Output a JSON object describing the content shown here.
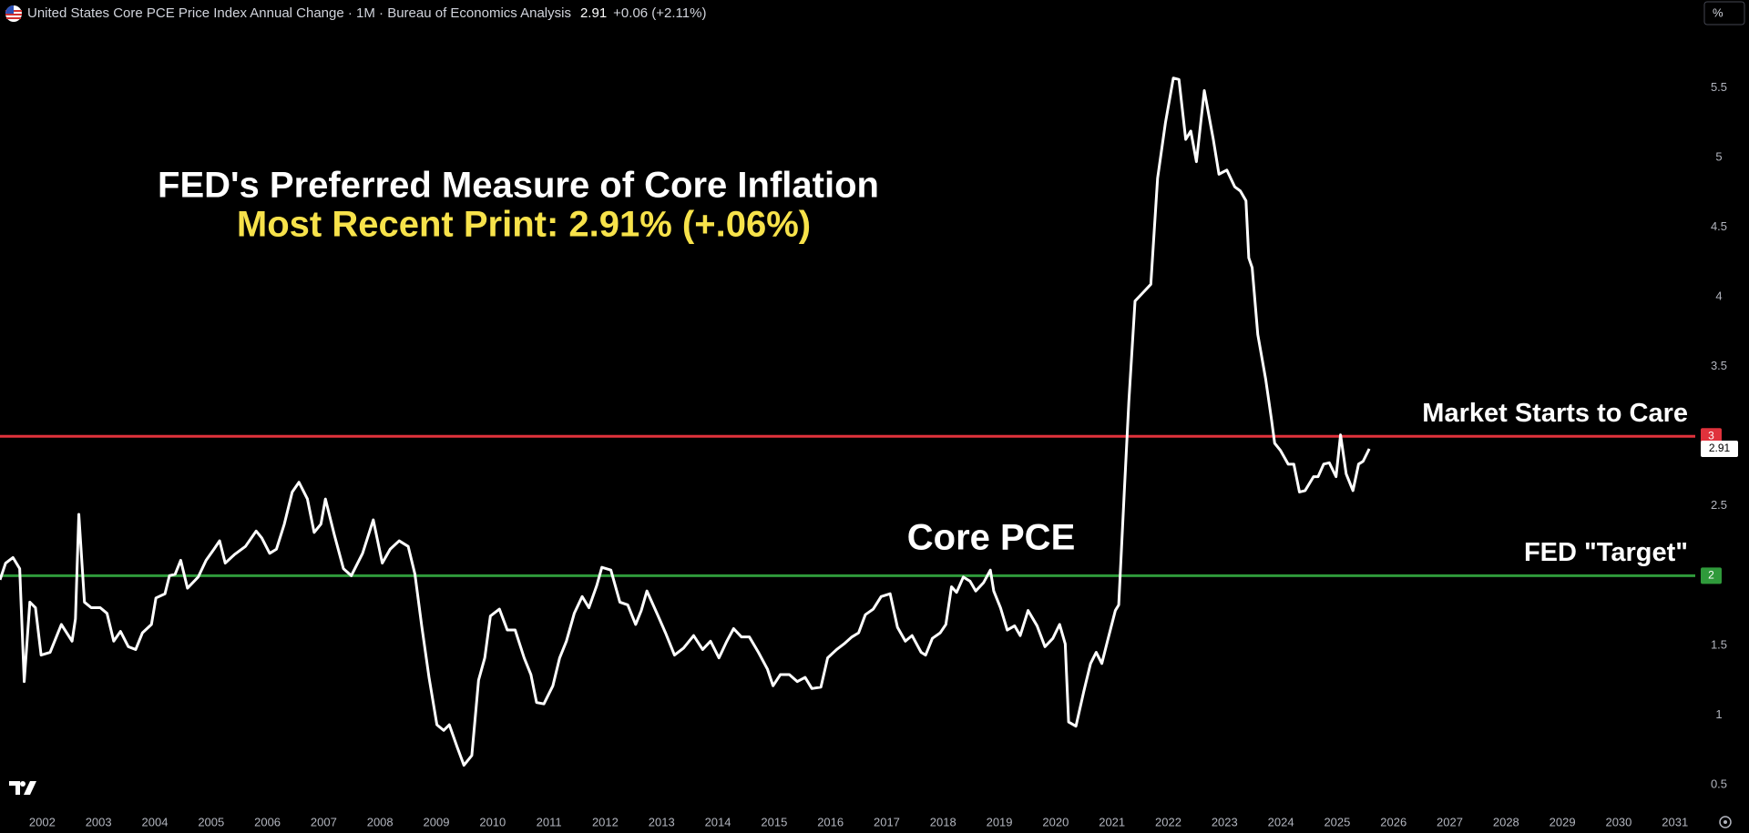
{
  "header": {
    "symbol": "United States Core PCE Price Index Annual Change · 1M · Bureau of Economics Analysis",
    "price": 2.91,
    "change": "+0.06 (+2.11%)",
    "unit_button": "%"
  },
  "chart_data": {
    "type": "line",
    "title": "FED's Preferred Measure of Core Inflation",
    "subtitle": "Most Recent Print: 2.91% (+.06%)",
    "xlim": [
      2001.25,
      2031.36
    ],
    "xticks": [
      2002,
      2003,
      2004,
      2005,
      2006,
      2007,
      2008,
      2009,
      2010,
      2011,
      2012,
      2013,
      2014,
      2015,
      2016,
      2017,
      2018,
      2019,
      2020,
      2021,
      2022,
      2023,
      2024,
      2025,
      2026,
      2027,
      2028,
      2029,
      2030,
      2031
    ],
    "ylim": [
      0.33,
      6.13
    ],
    "yticks": [
      0.5,
      1,
      1.5,
      2.5,
      3.5,
      4,
      4.5,
      5,
      5.5
    ],
    "grid": false,
    "hlines": [
      {
        "value": 3,
        "color": "#e0323c",
        "label": "Market Starts to Care"
      },
      {
        "value": 2,
        "color": "#2f9a3b",
        "label": "FED \"Target\""
      }
    ],
    "series": [
      {
        "name": "Core PCE",
        "color": "#ffffff",
        "x": [
          2001.25,
          2001.35,
          2001.48,
          2001.6,
          2001.68,
          2001.78,
          2001.88,
          2001.98,
          2002.14,
          2002.34,
          2002.53,
          2002.59,
          2002.65,
          2002.75,
          2002.87,
          2003.03,
          2003.15,
          2003.27,
          2003.39,
          2003.53,
          2003.66,
          2003.78,
          2003.94,
          2004.02,
          2004.18,
          2004.26,
          2004.36,
          2004.46,
          2004.58,
          2004.77,
          2004.91,
          2005.05,
          2005.15,
          2005.25,
          2005.41,
          2005.61,
          2005.8,
          2005.9,
          2006.04,
          2006.16,
          2006.3,
          2006.44,
          2006.56,
          2006.71,
          2006.83,
          2006.95,
          2007.03,
          2007.19,
          2007.35,
          2007.49,
          2007.69,
          2007.88,
          2008.04,
          2008.18,
          2008.34,
          2008.5,
          2008.62,
          2008.74,
          2008.87,
          2009.01,
          2009.13,
          2009.23,
          2009.37,
          2009.49,
          2009.63,
          2009.75,
          2009.86,
          2009.96,
          2010.12,
          2010.26,
          2010.4,
          2010.56,
          2010.68,
          2010.78,
          2010.91,
          2011.07,
          2011.19,
          2011.31,
          2011.45,
          2011.59,
          2011.71,
          2011.85,
          2011.94,
          2012.1,
          2012.26,
          2012.4,
          2012.54,
          2012.64,
          2012.74,
          2012.94,
          2013.07,
          2013.23,
          2013.39,
          2013.57,
          2013.73,
          2013.87,
          2014.02,
          2014.16,
          2014.28,
          2014.42,
          2014.56,
          2014.72,
          2014.88,
          2014.98,
          2015.11,
          2015.27,
          2015.41,
          2015.55,
          2015.67,
          2015.83,
          2015.95,
          2016.11,
          2016.24,
          2016.38,
          2016.5,
          2016.62,
          2016.76,
          2016.9,
          2017.06,
          2017.19,
          2017.33,
          2017.45,
          2017.61,
          2017.69,
          2017.81,
          2017.95,
          2018.05,
          2018.15,
          2018.24,
          2018.36,
          2018.48,
          2018.58,
          2018.72,
          2018.84,
          2018.9,
          2019.02,
          2019.14,
          2019.27,
          2019.37,
          2019.51,
          2019.67,
          2019.81,
          2019.95,
          2020.07,
          2020.17,
          2020.23,
          2020.36,
          2020.5,
          2020.62,
          2020.72,
          2020.82,
          2020.92,
          2021.06,
          2021.12,
          2021.22,
          2021.3,
          2021.41,
          2021.55,
          2021.69,
          2021.81,
          2021.95,
          2022.09,
          2022.19,
          2022.31,
          2022.4,
          2022.5,
          2022.64,
          2022.8,
          2022.9,
          2023.04,
          2023.18,
          2023.28,
          2023.38,
          2023.43,
          2023.49,
          2023.59,
          2023.73,
          2023.83,
          2023.89,
          2023.99,
          2024.13,
          2024.23,
          2024.33,
          2024.43,
          2024.58,
          2024.66,
          2024.76,
          2024.86,
          2024.98,
          2025.06,
          2025.16,
          2025.28,
          2025.38,
          2025.46,
          2025.57
        ],
        "values": [
          1.97,
          2.09,
          2.13,
          2.05,
          1.24,
          1.81,
          1.77,
          1.43,
          1.45,
          1.65,
          1.53,
          1.69,
          2.44,
          1.81,
          1.77,
          1.77,
          1.73,
          1.53,
          1.6,
          1.49,
          1.47,
          1.59,
          1.65,
          1.84,
          1.87,
          2.0,
          2.01,
          2.11,
          1.91,
          1.99,
          2.11,
          2.19,
          2.25,
          2.09,
          2.15,
          2.21,
          2.32,
          2.27,
          2.16,
          2.19,
          2.37,
          2.6,
          2.67,
          2.55,
          2.31,
          2.37,
          2.55,
          2.29,
          2.05,
          2.0,
          2.16,
          2.4,
          2.09,
          2.19,
          2.25,
          2.21,
          2.01,
          1.64,
          1.27,
          0.93,
          0.89,
          0.93,
          0.77,
          0.64,
          0.71,
          1.25,
          1.41,
          1.71,
          1.76,
          1.61,
          1.61,
          1.41,
          1.29,
          1.09,
          1.08,
          1.21,
          1.41,
          1.53,
          1.73,
          1.85,
          1.77,
          1.93,
          2.06,
          2.04,
          1.81,
          1.79,
          1.65,
          1.75,
          1.89,
          1.71,
          1.59,
          1.43,
          1.48,
          1.57,
          1.47,
          1.53,
          1.41,
          1.53,
          1.62,
          1.56,
          1.56,
          1.45,
          1.33,
          1.21,
          1.29,
          1.29,
          1.24,
          1.27,
          1.19,
          1.2,
          1.41,
          1.47,
          1.51,
          1.56,
          1.59,
          1.72,
          1.76,
          1.85,
          1.87,
          1.63,
          1.53,
          1.57,
          1.45,
          1.43,
          1.55,
          1.59,
          1.65,
          1.92,
          1.88,
          1.99,
          1.96,
          1.89,
          1.95,
          2.04,
          1.89,
          1.77,
          1.61,
          1.64,
          1.57,
          1.75,
          1.64,
          1.49,
          1.55,
          1.65,
          1.51,
          0.95,
          0.92,
          1.17,
          1.37,
          1.45,
          1.37,
          1.53,
          1.75,
          1.79,
          2.61,
          3.25,
          3.97,
          4.03,
          4.09,
          4.85,
          5.25,
          5.57,
          5.56,
          5.13,
          5.19,
          4.97,
          5.48,
          5.13,
          4.88,
          4.91,
          4.79,
          4.76,
          4.69,
          4.28,
          4.21,
          3.73,
          3.41,
          3.13,
          2.95,
          2.9,
          2.8,
          2.8,
          2.6,
          2.61,
          2.71,
          2.71,
          2.8,
          2.81,
          2.71,
          3.01,
          2.73,
          2.61,
          2.8,
          2.82,
          2.91
        ]
      }
    ]
  }
}
